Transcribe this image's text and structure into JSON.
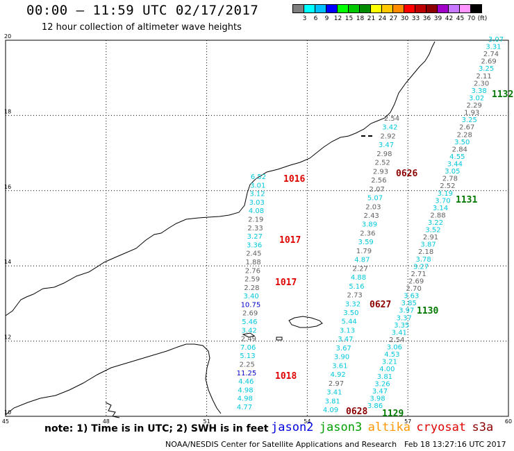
{
  "header": {
    "title": "00:00 – 11:59 UTC 02/17/2017",
    "subtitle": "12 hour collection of altimeter wave heights"
  },
  "legend": {
    "colors": [
      "#7f7f7f",
      "#00ffff",
      "#00bfff",
      "#0000ff",
      "#00ff00",
      "#00c800",
      "#008c00",
      "#ffff00",
      "#ffc800",
      "#ff8c00",
      "#ff0000",
      "#be0000",
      "#8c0000",
      "#a000c8",
      "#c878ff",
      "#ff96ff",
      "#000000"
    ],
    "labels": [
      "3",
      "6",
      "9",
      "12",
      "15",
      "18",
      "21",
      "24",
      "27",
      "30",
      "33",
      "36",
      "39",
      "42",
      "45",
      "70",
      "(ft)"
    ]
  },
  "map": {
    "x_ticks": [
      "45",
      "48",
      "51",
      "54",
      "57",
      "60"
    ],
    "y_ticks": [
      "20",
      "18",
      "16",
      "14",
      "12",
      "10"
    ],
    "colors": {
      "cyan": "#00c8dc",
      "gray": "#606060",
      "blue": "#0000c8",
      "red": "#e00000",
      "darkred": "#8c0000",
      "green": "#007800"
    },
    "tracks": [
      {
        "values": [
          {
            "v": "6.52",
            "c": "cyan"
          },
          {
            "v": "3.01",
            "c": "cyan"
          },
          {
            "v": "3.12",
            "c": "cyan"
          },
          {
            "v": "3.03",
            "c": "cyan"
          },
          {
            "v": "4.08",
            "c": "cyan"
          },
          {
            "v": "2.19",
            "c": "gray"
          },
          {
            "v": "2.33",
            "c": "gray"
          },
          {
            "v": "3.27",
            "c": "cyan"
          },
          {
            "v": "3.36",
            "c": "cyan"
          },
          {
            "v": "2.45",
            "c": "gray"
          },
          {
            "v": "1.88",
            "c": "gray"
          },
          {
            "v": "2.76",
            "c": "gray"
          },
          {
            "v": "2.59",
            "c": "gray"
          },
          {
            "v": "2.28",
            "c": "gray"
          },
          {
            "v": "3.40",
            "c": "cyan"
          },
          {
            "v": "10.75",
            "c": "blue"
          },
          {
            "v": "2.69",
            "c": "gray"
          },
          {
            "v": "5.46",
            "c": "cyan"
          },
          {
            "v": "3.42",
            "c": "cyan"
          },
          {
            "v": "2.49",
            "c": "gray"
          },
          {
            "v": "7.06",
            "c": "cyan"
          },
          {
            "v": "5.13",
            "c": "cyan"
          },
          {
            "v": "2.25",
            "c": "gray"
          },
          {
            "v": "11.25",
            "c": "blue"
          },
          {
            "v": "4.46",
            "c": "cyan"
          },
          {
            "v": "4.98",
            "c": "cyan"
          },
          {
            "v": "4.98",
            "c": "cyan"
          },
          {
            "v": "4.77",
            "c": "cyan"
          }
        ]
      },
      {
        "values": [
          {
            "v": "2.54",
            "c": "gray"
          },
          {
            "v": "3.42",
            "c": "cyan"
          },
          {
            "v": "2.92",
            "c": "gray"
          },
          {
            "v": "3.47",
            "c": "cyan"
          },
          {
            "v": "2.98",
            "c": "gray"
          },
          {
            "v": "2.52",
            "c": "gray"
          },
          {
            "v": "2.93",
            "c": "gray"
          },
          {
            "v": "2.56",
            "c": "gray"
          },
          {
            "v": "2.07",
            "c": "gray"
          },
          {
            "v": "5.07",
            "c": "cyan"
          },
          {
            "v": "2.03",
            "c": "gray"
          },
          {
            "v": "2.43",
            "c": "gray"
          },
          {
            "v": "3.89",
            "c": "cyan"
          },
          {
            "v": "2.36",
            "c": "gray"
          },
          {
            "v": "3.59",
            "c": "cyan"
          },
          {
            "v": "1.79",
            "c": "gray"
          },
          {
            "v": "4.87",
            "c": "cyan"
          },
          {
            "v": "2.27",
            "c": "gray"
          },
          {
            "v": "4.88",
            "c": "cyan"
          },
          {
            "v": "5.16",
            "c": "cyan"
          },
          {
            "v": "2.73",
            "c": "gray"
          },
          {
            "v": "3.32",
            "c": "cyan"
          },
          {
            "v": "3.50",
            "c": "cyan"
          },
          {
            "v": "5.44",
            "c": "cyan"
          },
          {
            "v": "3.13",
            "c": "cyan"
          },
          {
            "v": "3.47",
            "c": "cyan"
          },
          {
            "v": "3.67",
            "c": "cyan"
          },
          {
            "v": "3.90",
            "c": "cyan"
          },
          {
            "v": "3.61",
            "c": "cyan"
          },
          {
            "v": "4.92",
            "c": "cyan"
          },
          {
            "v": "2.97",
            "c": "gray"
          },
          {
            "v": "3.41",
            "c": "cyan"
          },
          {
            "v": "3.81",
            "c": "cyan"
          },
          {
            "v": "4.09",
            "c": "cyan"
          }
        ]
      },
      {
        "values": [
          {
            "v": "3.07",
            "c": "cyan"
          },
          {
            "v": "3.31",
            "c": "cyan"
          },
          {
            "v": "2.74",
            "c": "gray"
          },
          {
            "v": "2.69",
            "c": "gray"
          },
          {
            "v": "3.25",
            "c": "cyan"
          },
          {
            "v": "2.11",
            "c": "gray"
          },
          {
            "v": "2.30",
            "c": "gray"
          },
          {
            "v": "3.38",
            "c": "cyan"
          },
          {
            "v": "3.02",
            "c": "cyan"
          },
          {
            "v": "2.29",
            "c": "gray"
          },
          {
            "v": "1.93",
            "c": "gray"
          },
          {
            "v": "3.25",
            "c": "cyan"
          },
          {
            "v": "2.67",
            "c": "gray"
          },
          {
            "v": "2.28",
            "c": "gray"
          },
          {
            "v": "3.50",
            "c": "cyan"
          },
          {
            "v": "2.84",
            "c": "gray"
          },
          {
            "v": "4.55",
            "c": "cyan"
          },
          {
            "v": "3.44",
            "c": "cyan"
          },
          {
            "v": "3.05",
            "c": "cyan"
          },
          {
            "v": "2.78",
            "c": "gray"
          },
          {
            "v": "2.52",
            "c": "gray"
          },
          {
            "v": "3.19",
            "c": "cyan"
          },
          {
            "v": "3.70",
            "c": "cyan"
          },
          {
            "v": "3.14",
            "c": "cyan"
          },
          {
            "v": "2.88",
            "c": "gray"
          },
          {
            "v": "3.22",
            "c": "cyan"
          },
          {
            "v": "3.52",
            "c": "cyan"
          },
          {
            "v": "2.91",
            "c": "gray"
          },
          {
            "v": "3.87",
            "c": "cyan"
          },
          {
            "v": "2.18",
            "c": "gray"
          },
          {
            "v": "3.78",
            "c": "cyan"
          },
          {
            "v": "3.27",
            "c": "cyan"
          },
          {
            "v": "2.71",
            "c": "gray"
          },
          {
            "v": "2.69",
            "c": "gray"
          },
          {
            "v": "2.70",
            "c": "gray"
          },
          {
            "v": "3.63",
            "c": "cyan"
          },
          {
            "v": "3.85",
            "c": "cyan"
          },
          {
            "v": "3.97",
            "c": "cyan"
          },
          {
            "v": "3.37",
            "c": "cyan"
          },
          {
            "v": "3.35",
            "c": "cyan"
          },
          {
            "v": "3.41",
            "c": "cyan"
          },
          {
            "v": "2.54",
            "c": "gray"
          },
          {
            "v": "3.06",
            "c": "cyan"
          },
          {
            "v": "4.53",
            "c": "cyan"
          },
          {
            "v": "3.21",
            "c": "cyan"
          },
          {
            "v": "4.00",
            "c": "cyan"
          },
          {
            "v": "3.81",
            "c": "cyan"
          },
          {
            "v": "3.26",
            "c": "cyan"
          },
          {
            "v": "3.47",
            "c": "cyan"
          },
          {
            "v": "3.98",
            "c": "cyan"
          },
          {
            "v": "3.86",
            "c": "cyan"
          }
        ]
      }
    ],
    "time_labels": [
      {
        "t": "1016",
        "c": "red"
      },
      {
        "t": "1017",
        "c": "red"
      },
      {
        "t": "1017",
        "c": "red"
      },
      {
        "t": "1018",
        "c": "red"
      },
      {
        "t": "0626",
        "c": "darkred"
      },
      {
        "t": "0627",
        "c": "darkred"
      },
      {
        "t": "0628",
        "c": "darkred"
      },
      {
        "t": "1132",
        "c": "green"
      },
      {
        "t": "1131",
        "c": "green"
      },
      {
        "t": "1130",
        "c": "green"
      },
      {
        "t": "1129",
        "c": "green"
      }
    ]
  },
  "footer": {
    "note": "note: 1) Time is in UTC; 2) SWH is in feet",
    "satellites": [
      {
        "name": "jason2",
        "color": "#0000e0"
      },
      {
        "name": "jason3",
        "color": "#00a000"
      },
      {
        "name": "altika",
        "color": "#ff9600"
      },
      {
        "name": "cryosat",
        "color": "#e00000"
      },
      {
        "name": "s3a",
        "color": "#8c0000"
      }
    ],
    "credit": "NOAA/NESDIS Center for Satellite Applications and Research",
    "generated": "Feb 18 13:27:16 UTC 2017"
  }
}
